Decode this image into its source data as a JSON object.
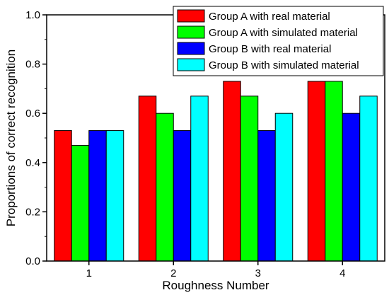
{
  "chart_data": {
    "type": "bar",
    "title": "",
    "xlabel": "Roughness Number",
    "ylabel": "Proportions of correct recognition",
    "categories": [
      "1",
      "2",
      "3",
      "4"
    ],
    "ylim": [
      0,
      1.0
    ],
    "yticks": [
      "0.0",
      "0.2",
      "0.4",
      "0.6",
      "0.8",
      "1.0"
    ],
    "grid": false,
    "legend_position": "top-right",
    "series": [
      {
        "name": "Group A with real material",
        "color": "#ff0000",
        "values": [
          0.53,
          0.67,
          0.73,
          0.73
        ]
      },
      {
        "name": "Group A with simulated material",
        "color": "#00ff00",
        "values": [
          0.47,
          0.6,
          0.67,
          0.73
        ]
      },
      {
        "name": "Group B with real material",
        "color": "#0000ff",
        "values": [
          0.53,
          0.53,
          0.53,
          0.6
        ]
      },
      {
        "name": "Group B with simulated material",
        "color": "#00ffff",
        "values": [
          0.53,
          0.67,
          0.6,
          0.67
        ]
      }
    ]
  }
}
